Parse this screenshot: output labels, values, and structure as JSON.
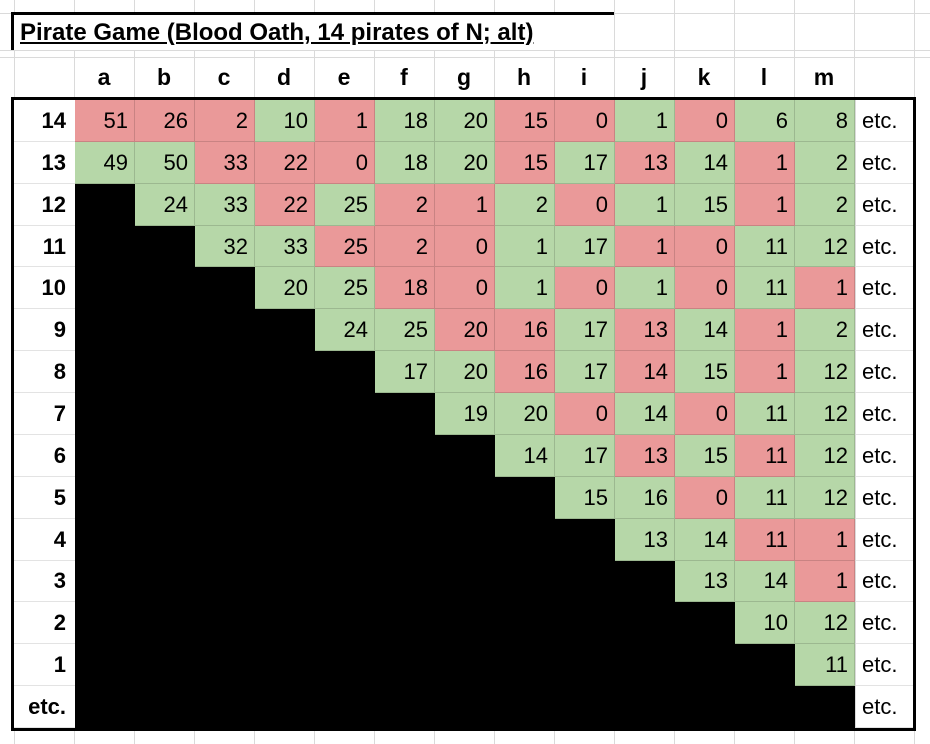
{
  "title": "Pirate Game (Blood Oath, 14 pirates of N; alt)",
  "etc_text": "etc.",
  "column_headers": [
    "a",
    "b",
    "c",
    "d",
    "e",
    "f",
    "g",
    "h",
    "i",
    "j",
    "k",
    "l",
    "m"
  ],
  "colors": {
    "accept_green": "#b6d7a8",
    "reject_red": "#ea9999",
    "dead_black": "#000000",
    "gridline": "#dadada"
  },
  "rows": [
    {
      "label": "14",
      "cells": [
        {
          "v": "51",
          "s": "red"
        },
        {
          "v": "26",
          "s": "red"
        },
        {
          "v": "2",
          "s": "red"
        },
        {
          "v": "10",
          "s": "green"
        },
        {
          "v": "1",
          "s": "red"
        },
        {
          "v": "18",
          "s": "green"
        },
        {
          "v": "20",
          "s": "green"
        },
        {
          "v": "15",
          "s": "red"
        },
        {
          "v": "0",
          "s": "red"
        },
        {
          "v": "1",
          "s": "green"
        },
        {
          "v": "0",
          "s": "red"
        },
        {
          "v": "6",
          "s": "green"
        },
        {
          "v": "8",
          "s": "green"
        }
      ]
    },
    {
      "label": "13",
      "cells": [
        {
          "v": "49",
          "s": "green"
        },
        {
          "v": "50",
          "s": "green"
        },
        {
          "v": "33",
          "s": "red"
        },
        {
          "v": "22",
          "s": "red"
        },
        {
          "v": "0",
          "s": "red"
        },
        {
          "v": "18",
          "s": "green"
        },
        {
          "v": "20",
          "s": "green"
        },
        {
          "v": "15",
          "s": "red"
        },
        {
          "v": "17",
          "s": "green"
        },
        {
          "v": "13",
          "s": "red"
        },
        {
          "v": "14",
          "s": "green"
        },
        {
          "v": "1",
          "s": "red"
        },
        {
          "v": "2",
          "s": "green"
        }
      ]
    },
    {
      "label": "12",
      "cells": [
        null,
        {
          "v": "24",
          "s": "green"
        },
        {
          "v": "33",
          "s": "green"
        },
        {
          "v": "22",
          "s": "red"
        },
        {
          "v": "25",
          "s": "green"
        },
        {
          "v": "2",
          "s": "red"
        },
        {
          "v": "1",
          "s": "red"
        },
        {
          "v": "2",
          "s": "green"
        },
        {
          "v": "0",
          "s": "red"
        },
        {
          "v": "1",
          "s": "green"
        },
        {
          "v": "15",
          "s": "green"
        },
        {
          "v": "1",
          "s": "red"
        },
        {
          "v": "2",
          "s": "green"
        }
      ]
    },
    {
      "label": "11",
      "cells": [
        null,
        null,
        {
          "v": "32",
          "s": "green"
        },
        {
          "v": "33",
          "s": "green"
        },
        {
          "v": "25",
          "s": "red"
        },
        {
          "v": "2",
          "s": "red"
        },
        {
          "v": "0",
          "s": "red"
        },
        {
          "v": "1",
          "s": "green"
        },
        {
          "v": "17",
          "s": "green"
        },
        {
          "v": "1",
          "s": "red"
        },
        {
          "v": "0",
          "s": "red"
        },
        {
          "v": "11",
          "s": "green"
        },
        {
          "v": "12",
          "s": "green"
        }
      ]
    },
    {
      "label": "10",
      "cells": [
        null,
        null,
        null,
        {
          "v": "20",
          "s": "green"
        },
        {
          "v": "25",
          "s": "green"
        },
        {
          "v": "18",
          "s": "red"
        },
        {
          "v": "0",
          "s": "red"
        },
        {
          "v": "1",
          "s": "green"
        },
        {
          "v": "0",
          "s": "red"
        },
        {
          "v": "1",
          "s": "green"
        },
        {
          "v": "0",
          "s": "red"
        },
        {
          "v": "11",
          "s": "green"
        },
        {
          "v": "1",
          "s": "red"
        }
      ]
    },
    {
      "label": "9",
      "cells": [
        null,
        null,
        null,
        null,
        {
          "v": "24",
          "s": "green"
        },
        {
          "v": "25",
          "s": "green"
        },
        {
          "v": "20",
          "s": "red"
        },
        {
          "v": "16",
          "s": "red"
        },
        {
          "v": "17",
          "s": "green"
        },
        {
          "v": "13",
          "s": "red"
        },
        {
          "v": "14",
          "s": "green"
        },
        {
          "v": "1",
          "s": "red"
        },
        {
          "v": "2",
          "s": "green"
        }
      ]
    },
    {
      "label": "8",
      "cells": [
        null,
        null,
        null,
        null,
        null,
        {
          "v": "17",
          "s": "green"
        },
        {
          "v": "20",
          "s": "green"
        },
        {
          "v": "16",
          "s": "red"
        },
        {
          "v": "17",
          "s": "green"
        },
        {
          "v": "14",
          "s": "red"
        },
        {
          "v": "15",
          "s": "green"
        },
        {
          "v": "1",
          "s": "red"
        },
        {
          "v": "12",
          "s": "green"
        }
      ]
    },
    {
      "label": "7",
      "cells": [
        null,
        null,
        null,
        null,
        null,
        null,
        {
          "v": "19",
          "s": "green"
        },
        {
          "v": "20",
          "s": "green"
        },
        {
          "v": "0",
          "s": "red"
        },
        {
          "v": "14",
          "s": "green"
        },
        {
          "v": "0",
          "s": "red"
        },
        {
          "v": "11",
          "s": "green"
        },
        {
          "v": "12",
          "s": "green"
        }
      ]
    },
    {
      "label": "6",
      "cells": [
        null,
        null,
        null,
        null,
        null,
        null,
        null,
        {
          "v": "14",
          "s": "green"
        },
        {
          "v": "17",
          "s": "green"
        },
        {
          "v": "13",
          "s": "red"
        },
        {
          "v": "15",
          "s": "green"
        },
        {
          "v": "11",
          "s": "red"
        },
        {
          "v": "12",
          "s": "green"
        }
      ]
    },
    {
      "label": "5",
      "cells": [
        null,
        null,
        null,
        null,
        null,
        null,
        null,
        null,
        {
          "v": "15",
          "s": "green"
        },
        {
          "v": "16",
          "s": "green"
        },
        {
          "v": "0",
          "s": "red"
        },
        {
          "v": "11",
          "s": "green"
        },
        {
          "v": "12",
          "s": "green"
        }
      ]
    },
    {
      "label": "4",
      "cells": [
        null,
        null,
        null,
        null,
        null,
        null,
        null,
        null,
        null,
        {
          "v": "13",
          "s": "green"
        },
        {
          "v": "14",
          "s": "green"
        },
        {
          "v": "11",
          "s": "red"
        },
        {
          "v": "1",
          "s": "red"
        }
      ]
    },
    {
      "label": "3",
      "cells": [
        null,
        null,
        null,
        null,
        null,
        null,
        null,
        null,
        null,
        null,
        {
          "v": "13",
          "s": "green"
        },
        {
          "v": "14",
          "s": "green"
        },
        {
          "v": "1",
          "s": "red"
        }
      ]
    },
    {
      "label": "2",
      "cells": [
        null,
        null,
        null,
        null,
        null,
        null,
        null,
        null,
        null,
        null,
        null,
        {
          "v": "10",
          "s": "green"
        },
        {
          "v": "12",
          "s": "green"
        }
      ]
    },
    {
      "label": "1",
      "cells": [
        null,
        null,
        null,
        null,
        null,
        null,
        null,
        null,
        null,
        null,
        null,
        null,
        {
          "v": "11",
          "s": "green"
        }
      ]
    },
    {
      "label": "etc.",
      "cells": [
        null,
        null,
        null,
        null,
        null,
        null,
        null,
        null,
        null,
        null,
        null,
        null,
        null
      ]
    }
  ]
}
